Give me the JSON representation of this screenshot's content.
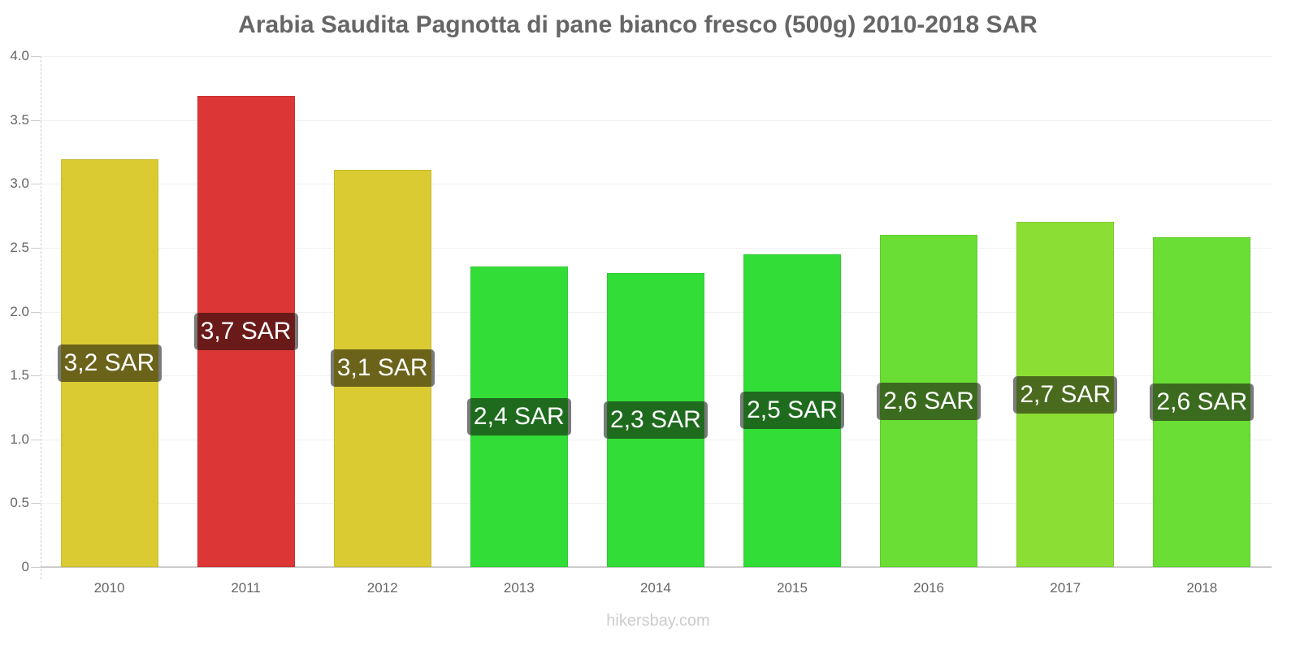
{
  "chart_data": {
    "type": "bar",
    "title": "Arabia Saudita Pagnotta di pane bianco fresco (500g) 2010-2018 SAR",
    "xlabel": "",
    "ylabel": "",
    "ylim": [
      0,
      4.0
    ],
    "yticks": [
      "0",
      "0.5",
      "1.0",
      "1.5",
      "2.0",
      "2.5",
      "3.0",
      "3.5",
      "4.0"
    ],
    "grid": true,
    "legend": "none",
    "categories": [
      "2010",
      "2011",
      "2012",
      "2013",
      "2014",
      "2015",
      "2016",
      "2017",
      "2018"
    ],
    "values": [
      3.19,
      3.69,
      3.11,
      2.35,
      2.3,
      2.45,
      2.6,
      2.7,
      2.58
    ],
    "data_labels": [
      "3,2 SAR",
      "3,7 SAR",
      "3,1 SAR",
      "2,4 SAR",
      "2,3 SAR",
      "2,5 SAR",
      "2,6 SAR",
      "2,7 SAR",
      "2,6 SAR"
    ],
    "bar_colors": [
      "#dbcb33",
      "#dc3636",
      "#dbcb33",
      "#33dd38",
      "#33dd38",
      "#33dd38",
      "#6ade34",
      "#8bde34",
      "#6ade34"
    ],
    "label_colors": [
      "#6b631a",
      "#6b1a1a",
      "#6b631a",
      "#1e6b1e",
      "#1e6b1e",
      "#1e6b1e",
      "#3b6b1e",
      "#4a6b1e",
      "#3b6b1e"
    ]
  },
  "watermark": "hikersbay.com"
}
